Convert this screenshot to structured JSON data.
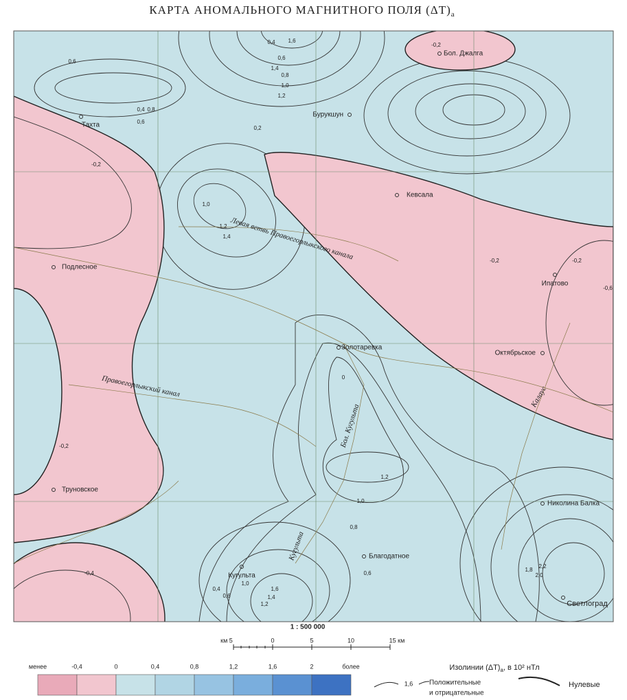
{
  "title": {
    "text": "КАРТА АНОМАЛЬНОГО МАГНИТНОГО ПОЛЯ",
    "symbol": "(ΔT)",
    "subscript": "a"
  },
  "places": [
    "Тахта",
    "Бурукшун",
    "Бол. Джалга",
    "Кевсала",
    "Подлесное",
    "Ипатово",
    "Золотаревка",
    "Октябрьское",
    "Труновское",
    "Николина Балка",
    "Благодатное",
    "Кугульта",
    "Светлоград"
  ],
  "waters": [
    "Левая ветвь Правоегорлыкского канала",
    "Правоегорлыкский канал",
    "Бол. Кугульта",
    "Кугульта",
    "Калаус"
  ],
  "contour_labels": [
    "0,4",
    "0,6",
    "0,8",
    "1,0",
    "1,2",
    "1,4",
    "1,6",
    "0,2",
    "-0,2",
    "0,4",
    "0,6",
    "0,8",
    "1,0",
    "1,2",
    "1,4",
    "0,6",
    "-0,2",
    "-0,6",
    "-0,2",
    "0",
    "1,0",
    "1,2",
    "0,8",
    "0,6",
    "-0,2",
    "-0,4",
    "0,4",
    "0,6",
    "1,0",
    "1,2",
    "1,4",
    "1,6",
    "1,8",
    "2,0",
    "2,2",
    "-0,2"
  ],
  "scale": {
    "ratio": "1 : 500 000",
    "labels": [
      "км 5",
      "0",
      "5",
      "10",
      "15 км"
    ]
  },
  "legend": {
    "labels": [
      "менее",
      "-0,4",
      "0",
      "0,4",
      "0,8",
      "1,2",
      "1,6",
      "2",
      "более"
    ],
    "colors": [
      "#e9aab9",
      "#f2c6cf",
      "#c7e2e8",
      "#b1d5e4",
      "#97c3e2",
      "#7aaedd",
      "#5a91d2",
      "#3d72c2"
    ],
    "isolines_title": "Изолинии (ΔT)",
    "isolines_subscript": "a",
    "isolines_unit": ",  в 10² нТл",
    "sample_value": "1,6",
    "positive_negative": [
      "Положительные",
      "и отрицательные"
    ],
    "zero": "Нулевые"
  }
}
